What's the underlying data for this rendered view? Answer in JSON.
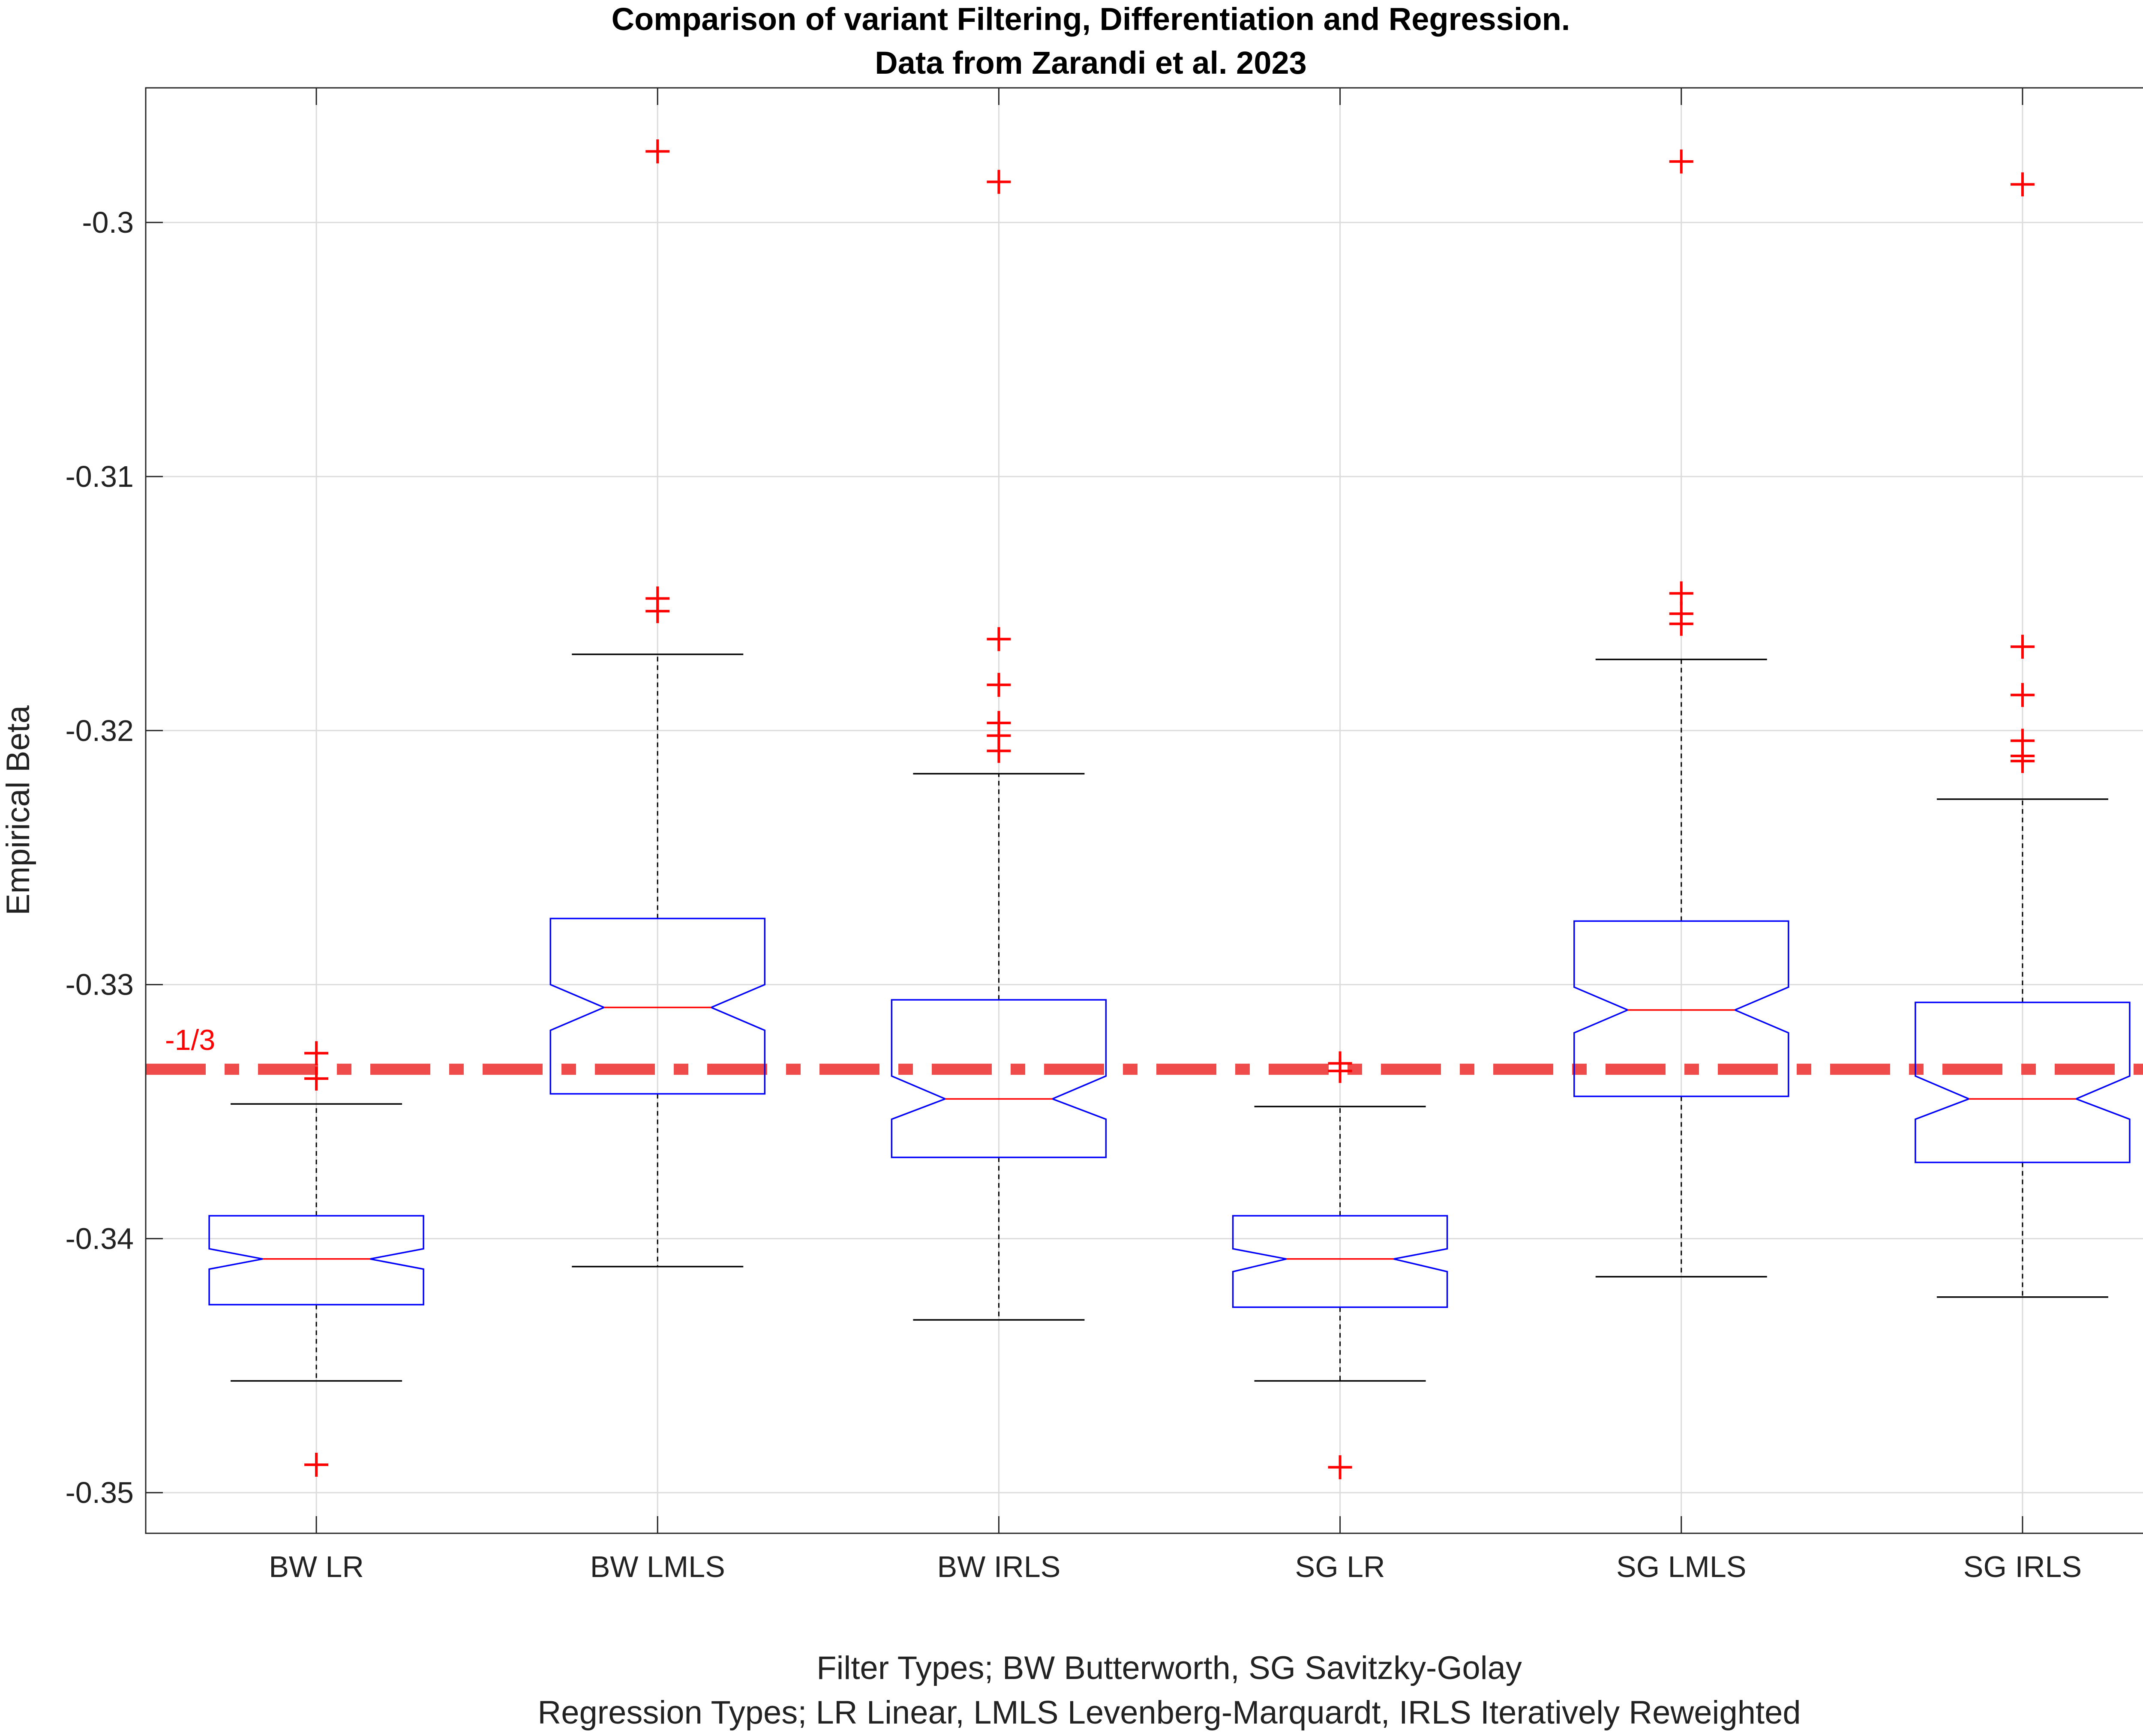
{
  "chart_data": {
    "type": "boxplot",
    "title": [
      "Comparison of variant Filtering, Differentiation and Regression.",
      "Data from Zarandi et al. 2023"
    ],
    "xlabel": [
      "Filter Types; BW Butterworth, SG Savitzky-Golay",
      "Regression Types; LR Linear, LMLS Levenberg-Marquardt, IRLS Iteratively Reweighted"
    ],
    "ylabel": "Empirical Beta",
    "ylim": [
      -0.3516,
      -0.2947
    ],
    "yticks": [
      -0.35,
      -0.34,
      -0.33,
      -0.32,
      -0.31,
      -0.3
    ],
    "grid": true,
    "notched": true,
    "reference_line": {
      "y": -0.3333333,
      "label": "-1/3",
      "color": "#f04b4b",
      "style": "dash-dot"
    },
    "colors": {
      "box": "#0000ff",
      "median": "#ff0000",
      "whisker": "#000000",
      "outlier": "#ff0000"
    },
    "categories": [
      "BW LR",
      "BW LMLS",
      "BW IRLS",
      "SG LR",
      "SG LMLS",
      "SG IRLS"
    ],
    "series": [
      {
        "q1": -0.3426,
        "median": -0.3408,
        "q3": -0.3391,
        "notch_low": -0.3412,
        "notch_high": -0.3404,
        "whisker_low": -0.3456,
        "whisker_high": -0.3347,
        "outliers": [
          -0.3327,
          -0.3337,
          -0.3489
        ]
      },
      {
        "q1": -0.3343,
        "median": -0.3309,
        "q3": -0.3274,
        "notch_low": -0.3318,
        "notch_high": -0.33,
        "whisker_low": -0.3411,
        "whisker_high": -0.317,
        "outliers": [
          -0.2972,
          -0.3148,
          -0.3153
        ]
      },
      {
        "q1": -0.3368,
        "median": -0.3345,
        "q3": -0.3306,
        "notch_low": -0.3353,
        "notch_high": -0.3336,
        "whisker_low": -0.3432,
        "whisker_high": -0.3217,
        "outliers": [
          -0.2984,
          -0.3164,
          -0.3182,
          -0.3197,
          -0.3202,
          -0.3208
        ]
      },
      {
        "q1": -0.3427,
        "median": -0.3408,
        "q3": -0.3391,
        "notch_low": -0.3413,
        "notch_high": -0.3404,
        "whisker_low": -0.3456,
        "whisker_high": -0.3348,
        "outliers": [
          -0.3331,
          -0.3334,
          -0.349
        ]
      },
      {
        "q1": -0.3344,
        "median": -0.331,
        "q3": -0.3275,
        "notch_low": -0.3319,
        "notch_high": -0.3301,
        "whisker_low": -0.3415,
        "whisker_high": -0.3172,
        "outliers": [
          -0.2976,
          -0.3146,
          -0.3154,
          -0.3158
        ]
      },
      {
        "q1": -0.337,
        "median": -0.3345,
        "q3": -0.3307,
        "notch_low": -0.3353,
        "notch_high": -0.3336,
        "whisker_low": -0.3423,
        "whisker_high": -0.3227,
        "outliers": [
          -0.2985,
          -0.3167,
          -0.3186,
          -0.3204,
          -0.321,
          -0.3212
        ]
      }
    ]
  }
}
